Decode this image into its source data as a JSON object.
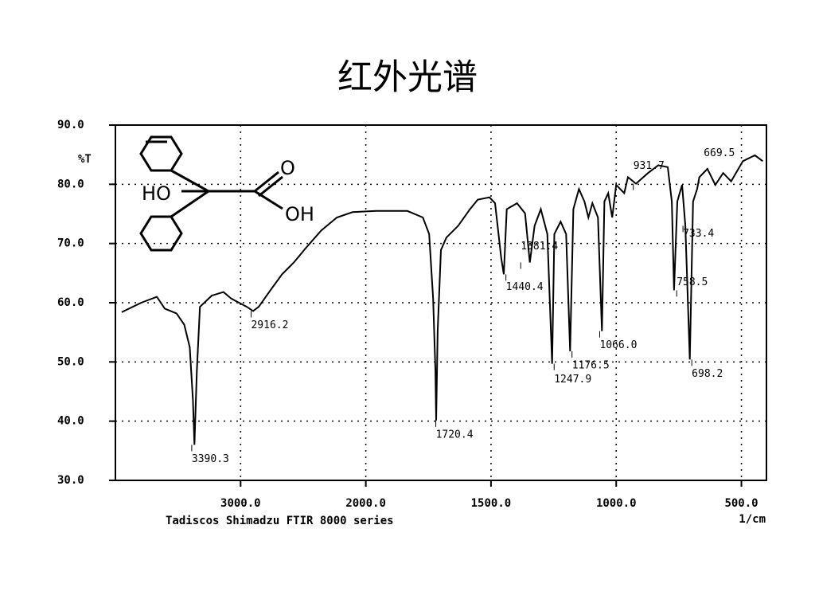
{
  "title": "红外光谱",
  "structure": {
    "labels": [
      "HO",
      "O",
      "OH"
    ]
  },
  "chart_data": {
    "type": "line",
    "ylabel": "%T",
    "xlabel": "1/cm",
    "instrument": "Tadiscos Shimadzu FTIR 8000 series",
    "color": "#000000",
    "grid": true,
    "xlim": [
      4000,
      400
    ],
    "xticks": [
      {
        "value": 3000,
        "label": "3000.0"
      },
      {
        "value": 2000,
        "label": "2000.0"
      },
      {
        "value": 1500,
        "label": "1500.0"
      },
      {
        "value": 1000,
        "label": "1000.0"
      },
      {
        "value": 500,
        "label": "500.0"
      }
    ],
    "ylim": [
      30,
      90
    ],
    "yticks": [
      {
        "value": 30,
        "label": "30.0"
      },
      {
        "value": 40,
        "label": "40.0"
      },
      {
        "value": 50,
        "label": "50.0"
      },
      {
        "value": 60,
        "label": "60.0"
      },
      {
        "value": 70,
        "label": "70.0"
      },
      {
        "value": 80,
        "label": "80.0"
      },
      {
        "value": 90,
        "label": "90.0"
      }
    ],
    "x": [
      3950,
      3794,
      3669,
      3606,
      3512,
      3450,
      3406,
      3381,
      3369,
      3350,
      3325,
      3231,
      3137,
      3075,
      3012,
      2950,
      2900,
      2856,
      2762,
      2669,
      2575,
      2481,
      2356,
      2231,
      2106,
      1959,
      1834,
      1772,
      1747,
      1731,
      1722,
      1719,
      1713,
      1700,
      1678,
      1631,
      1584,
      1553,
      1506,
      1484,
      1459,
      1449,
      1437,
      1396,
      1364,
      1345,
      1326,
      1301,
      1275,
      1256,
      1247,
      1222,
      1200,
      1184,
      1171,
      1149,
      1127,
      1111,
      1095,
      1073,
      1057,
      1047,
      1032,
      1016,
      1000,
      968,
      953,
      921,
      873,
      832,
      794,
      778,
      769,
      756,
      737,
      724,
      706,
      693,
      677,
      668,
      636,
      604,
      573,
      541,
      494,
      446,
      415
    ],
    "values": [
      58.4,
      60.0,
      61.0,
      59.0,
      58.2,
      56.3,
      52.5,
      43.6,
      36.0,
      48.4,
      59.3,
      61.2,
      61.8,
      60.7,
      60.0,
      59.3,
      58.6,
      59.3,
      62.1,
      64.8,
      66.8,
      69.2,
      72.2,
      74.4,
      75.3,
      75.5,
      75.5,
      74.4,
      71.6,
      60.7,
      48.4,
      40.1,
      55.2,
      68.9,
      71.0,
      73.0,
      75.8,
      77.4,
      77.8,
      76.8,
      67.5,
      64.8,
      75.8,
      76.8,
      75.1,
      66.8,
      73.0,
      75.8,
      71.6,
      49.7,
      71.6,
      73.7,
      71.6,
      51.8,
      75.8,
      79.2,
      77.1,
      74.4,
      76.8,
      74.4,
      55.2,
      77.1,
      78.5,
      74.4,
      79.9,
      78.5,
      81.2,
      80.1,
      81.9,
      83.2,
      82.9,
      77.1,
      62.1,
      77.1,
      79.9,
      73.0,
      50.4,
      77.1,
      79.2,
      81.2,
      82.6,
      79.9,
      81.9,
      80.5,
      83.9,
      84.9,
      83.9
    ],
    "peaks": [
      {
        "x": 3390.3,
        "y": 36.0,
        "label": "3390.3"
      },
      {
        "x": 2916.2,
        "y": 58.6,
        "label": "2916.2"
      },
      {
        "x": 1720.4,
        "y": 40.1,
        "label": "1720.4"
      },
      {
        "x": 1440.4,
        "y": 64.8,
        "label": "1440.4"
      },
      {
        "x": 1381.4,
        "y": 66.8,
        "label": "1381.4"
      },
      {
        "x": 1247.9,
        "y": 49.7,
        "label": "1247.9"
      },
      {
        "x": 1176.5,
        "y": 51.8,
        "label": "1176.5"
      },
      {
        "x": 1066.0,
        "y": 55.2,
        "label": "1066.0"
      },
      {
        "x": 931.7,
        "y": 80.1,
        "label": "931.7"
      },
      {
        "x": 758.5,
        "y": 62.1,
        "label": "758.5"
      },
      {
        "x": 733.4,
        "y": 73.0,
        "label": "733.4"
      },
      {
        "x": 698.2,
        "y": 50.4,
        "label": "698.2"
      },
      {
        "x": 669.5,
        "y": 81.2,
        "label": "669.5"
      }
    ]
  }
}
